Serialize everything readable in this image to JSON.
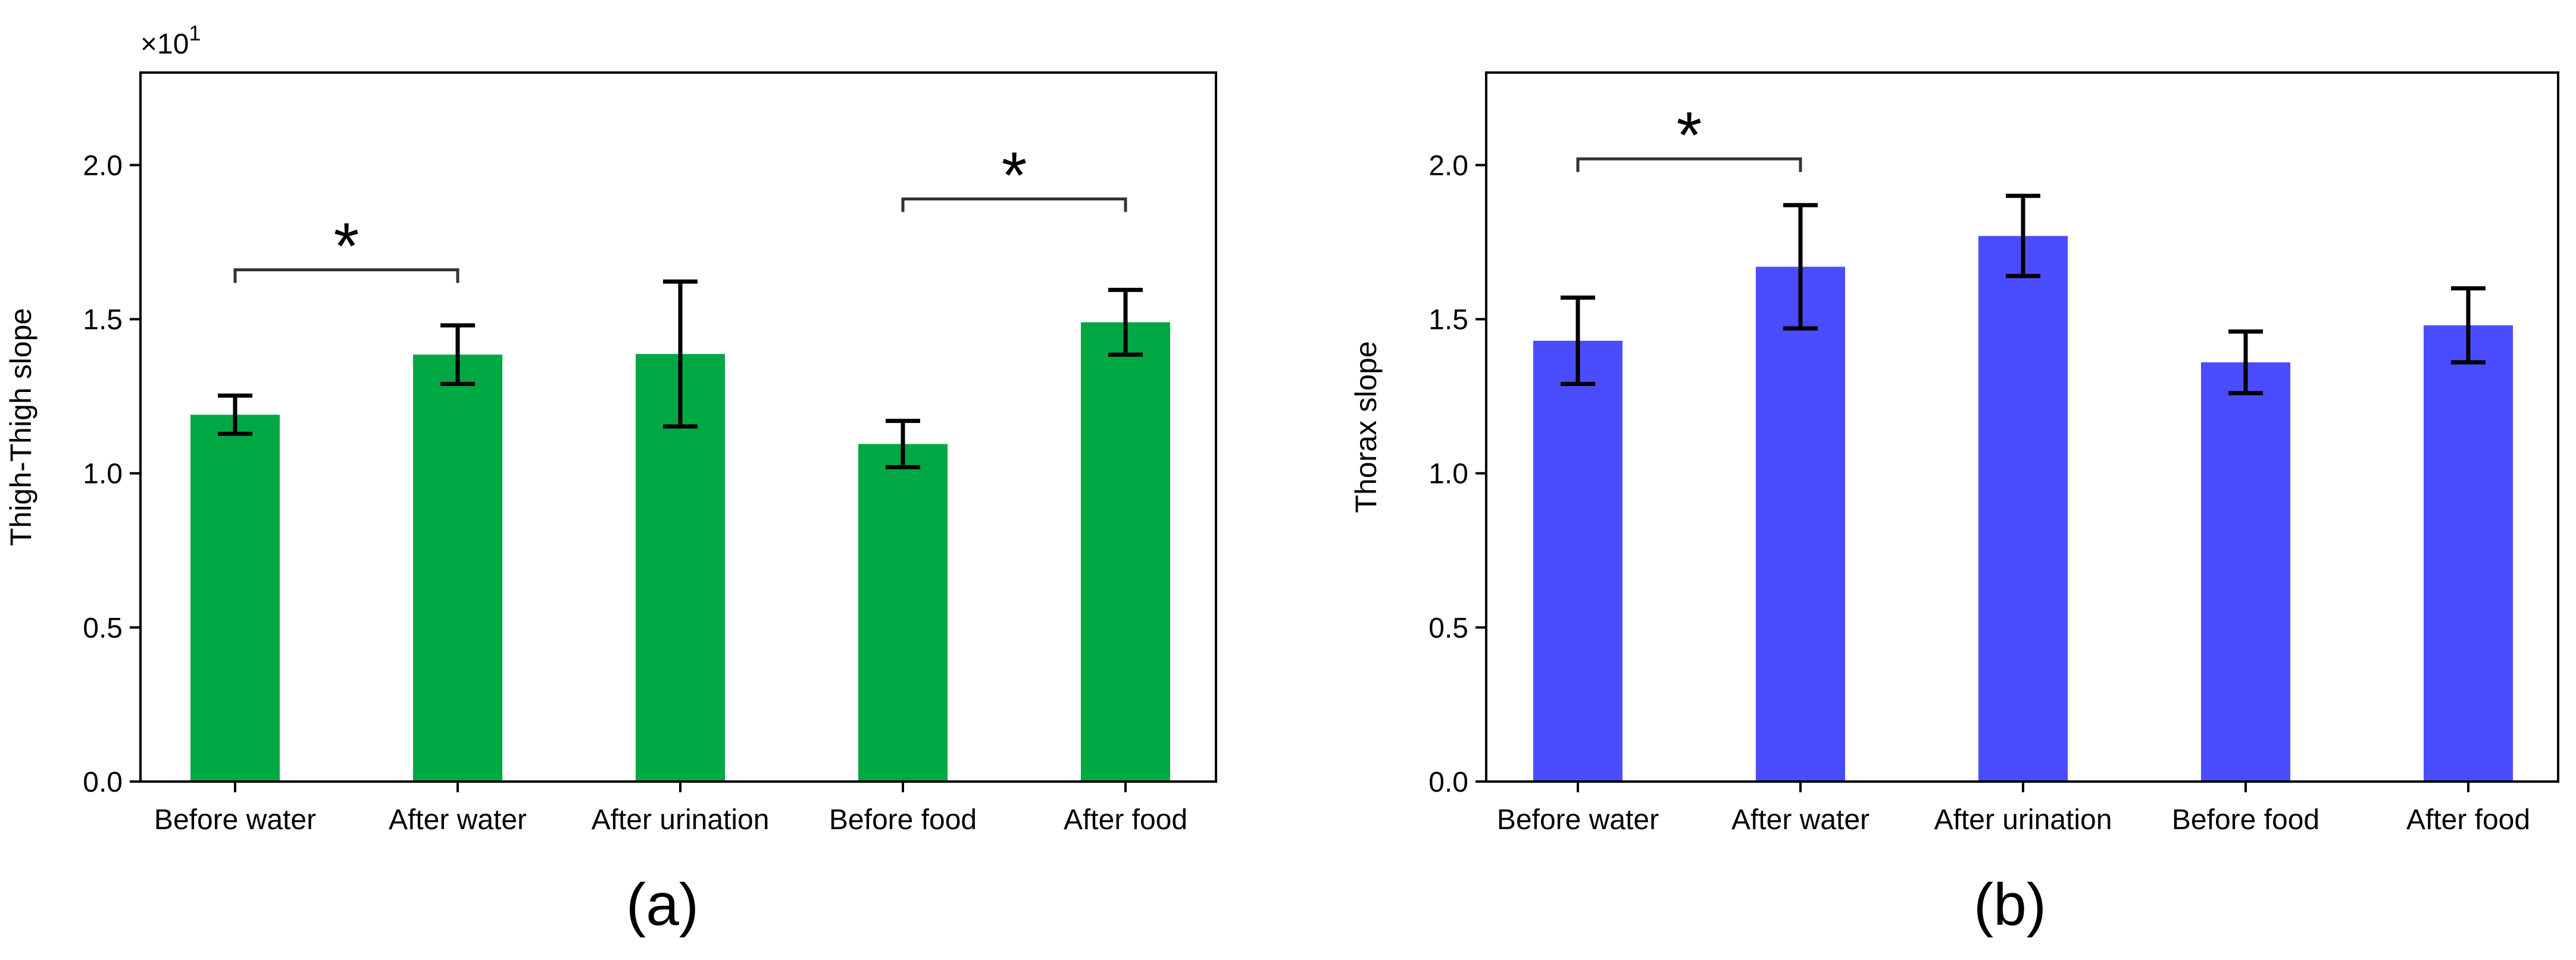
{
  "chart_data": [
    {
      "type": "bar",
      "panel_label": "(a)",
      "ylabel": "Thigh-Thigh slope",
      "scale_label": "×10",
      "scale_exponent": "1",
      "ylim": [
        0,
        2.3
      ],
      "yticks": [
        0.0,
        0.5,
        1.0,
        1.5,
        2.0
      ],
      "ytick_labels": [
        "0.0",
        "0.5",
        "1.0",
        "1.5",
        "2.0"
      ],
      "categories": [
        "Before water",
        "After water",
        "After urination",
        "Before food",
        "After food"
      ],
      "values": [
        1.19,
        1.385,
        1.387,
        1.095,
        1.49
      ],
      "errors": [
        0.062,
        0.095,
        0.235,
        0.075,
        0.105
      ],
      "bar_color": "#00a844",
      "significance": [
        {
          "from": 0,
          "to": 1,
          "label": "*",
          "level": 1.66
        },
        {
          "from": 3,
          "to": 4,
          "label": "*",
          "level": 1.89
        }
      ]
    },
    {
      "type": "bar",
      "panel_label": "(b)",
      "ylabel": "Thorax slope",
      "ylim": [
        0,
        2.3
      ],
      "yticks": [
        0.0,
        0.5,
        1.0,
        1.5,
        2.0
      ],
      "ytick_labels": [
        "0.0",
        "0.5",
        "1.0",
        "1.5",
        "2.0"
      ],
      "categories": [
        "Before water",
        "After water",
        "After urination",
        "Before food",
        "After food"
      ],
      "values": [
        1.43,
        1.67,
        1.77,
        1.36,
        1.48
      ],
      "errors": [
        0.14,
        0.2,
        0.13,
        0.1,
        0.12
      ],
      "bar_color": "#4a4cff",
      "significance": [
        {
          "from": 0,
          "to": 1,
          "label": "*",
          "level": 2.02
        }
      ]
    }
  ]
}
